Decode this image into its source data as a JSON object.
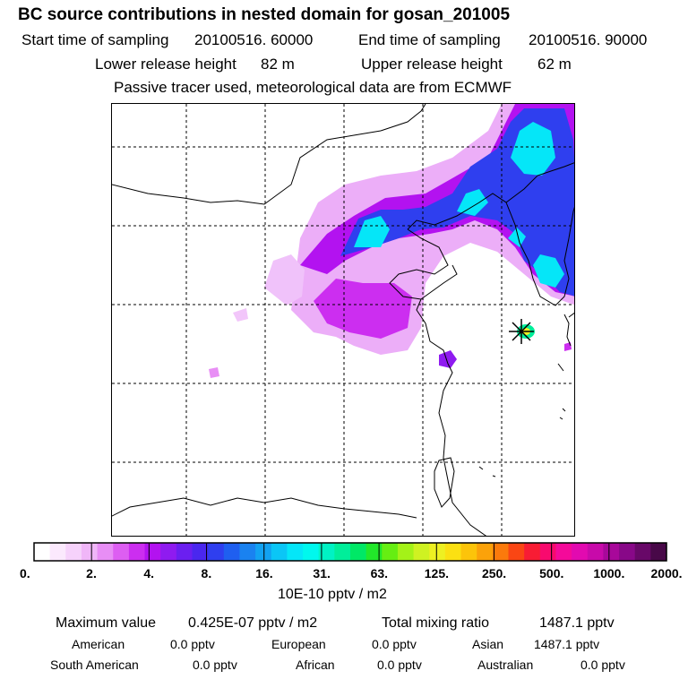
{
  "header": {
    "title": "BC  source contributions in nested domain for gosan_201005",
    "start_label": "Start time of sampling",
    "start_value": "20100516. 60000",
    "end_label": "End time of sampling",
    "end_value": "20100516. 90000",
    "lower_label": "Lower release height",
    "lower_value": "82 m",
    "upper_label": "Upper release height",
    "upper_value": "62 m",
    "tracer_note": "Passive tracer used, meteorological data are from ECMWF"
  },
  "chart_data": {
    "type": "heatmap",
    "title": "BC  source contributions in nested domain for gosan_201005",
    "colorbar": {
      "unit": "10E-10 pptv / m2",
      "tick_labels": [
        "0.",
        "2.",
        "4.",
        "8.",
        "16.",
        "31.",
        "63.",
        "125.",
        "250.",
        "500.",
        "1000.",
        "2000."
      ],
      "colors": [
        "#ffffff",
        "#fbe9fd",
        "#f6d2fb",
        "#f0b6f8",
        "#e88ef5",
        "#dd5ef2",
        "#cc2ef0",
        "#b312f0",
        "#8f1bf0",
        "#6b1ff0",
        "#4a27ef",
        "#2f3fef",
        "#1f5ff0",
        "#1a82f0",
        "#12a2f2",
        "#0bc6f6",
        "#05e6f8",
        "#00f8ee",
        "#00f2c4",
        "#00ee9a",
        "#00e866",
        "#22e82a",
        "#66ee12",
        "#a4f218",
        "#cff222",
        "#eef022",
        "#fbe012",
        "#fcc40a",
        "#fba20a",
        "#fb7a0c",
        "#fa4614",
        "#f81c34",
        "#f80a6e",
        "#f40a9a",
        "#e20ab0",
        "#c80aaa",
        "#a8089a",
        "#880888",
        "#680868",
        "#480848"
      ],
      "range": [
        0,
        2000
      ]
    },
    "receptor": {
      "name": "gosan",
      "marker": "star"
    },
    "gridlines": "dashed"
  },
  "footer": {
    "max_label": "Maximum value",
    "max_value": "0.425E-07 pptv / m2",
    "total_label": "Total mixing ratio",
    "total_value": "1487.1 pptv",
    "regions": [
      {
        "name": "American",
        "value": "0.0 pptv"
      },
      {
        "name": "European",
        "value": "0.0 pptv"
      },
      {
        "name": "Asian",
        "value": "1487.1 pptv"
      },
      {
        "name": "South American",
        "value": "0.0 pptv"
      },
      {
        "name": "African",
        "value": "0.0 pptv"
      },
      {
        "name": "Australian",
        "value": "0.0 pptv"
      }
    ]
  }
}
